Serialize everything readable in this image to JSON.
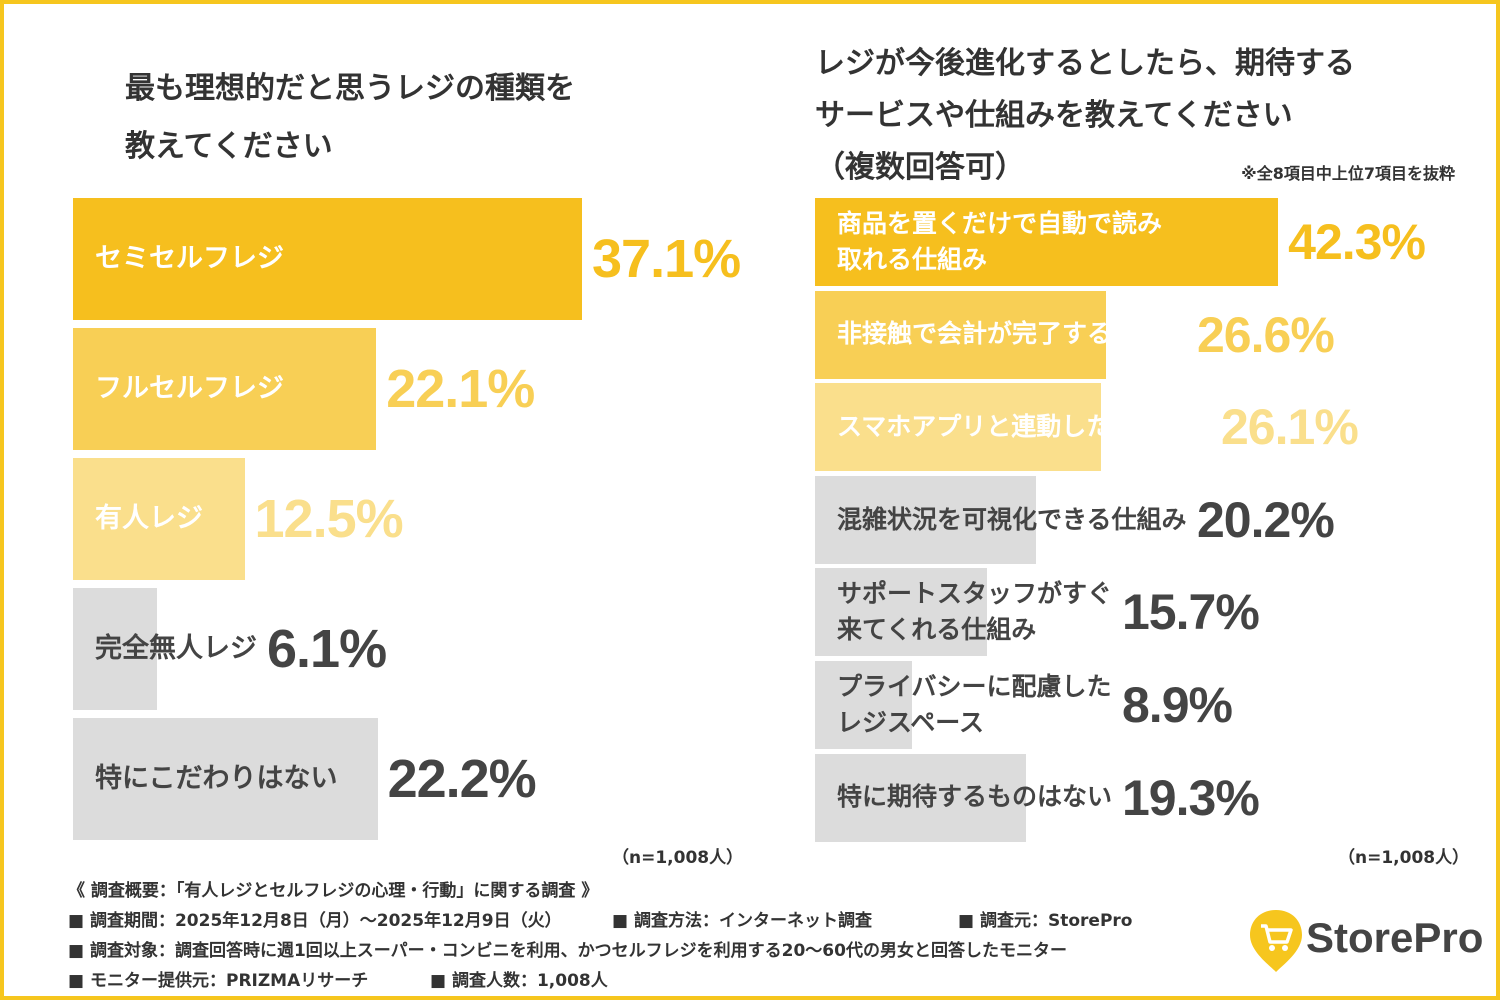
{
  "chart_data": [
    {
      "type": "bar",
      "orientation": "horizontal",
      "title": "最も理想的だと思うレジの種類を\n教えてください",
      "categories": [
        "セミセルフレジ",
        "フルセルフレジ",
        "有人レジ",
        "完全無人レジ",
        "特にこだわりはない"
      ],
      "values": [
        37.1,
        22.1,
        12.5,
        6.1,
        22.2
      ],
      "value_labels": [
        "37.1%",
        "22.1%",
        "12.5%",
        "6.1%",
        "22.2%"
      ],
      "colors": [
        "#f6bf1e",
        "#f8cf55",
        "#fadf8c",
        "#dcdcdc",
        "#dcdcdc"
      ],
      "label_colors": [
        "#ffffff",
        "#ffffff",
        "#ffffff",
        "#444444",
        "#444444"
      ],
      "value_colors": [
        "#f6bf1e",
        "#f8cf55",
        "#fadf8c",
        "#444444",
        "#444444"
      ],
      "note": "（n=1,008人）"
    },
    {
      "type": "bar",
      "orientation": "horizontal",
      "title": "レジが今後進化するとしたら、期待する\nサービスや仕組みを教えてください\n（複数回答可）",
      "annotation": "※全8項目中上位7項目を抜粋",
      "categories": [
        "商品を置くだけで自動で読み\n取れる仕組み",
        "非接触で会計が完了する仕組み",
        "スマホアプリと連動した自動決済",
        "混雑状況を可視化できる仕組み",
        "サポートスタッフがすぐ\n来てくれる仕組み",
        "プライバシーに配慮した\nレジスペース",
        "特に期待するものはない"
      ],
      "values": [
        42.3,
        26.6,
        26.1,
        20.2,
        15.7,
        8.9,
        19.3
      ],
      "value_labels": [
        "42.3%",
        "26.6%",
        "26.1%",
        "20.2%",
        "15.7%",
        "8.9%",
        "19.3%"
      ],
      "colors": [
        "#f6bf1e",
        "#f8cf55",
        "#fadf8c",
        "#dcdcdc",
        "#dcdcdc",
        "#dcdcdc",
        "#dcdcdc"
      ],
      "label_colors": [
        "#ffffff",
        "#ffffff",
        "#ffffff",
        "#444444",
        "#444444",
        "#444444",
        "#444444"
      ],
      "value_colors": [
        "#f6bf1e",
        "#f8cf55",
        "#fadf8c",
        "#444444",
        "#444444",
        "#444444",
        "#444444"
      ],
      "note": "（n=1,008人）"
    }
  ],
  "footer": {
    "heading": "《 調査概要：「有人レジとセルフレジの心理・行動」に関する調査 》",
    "items": [
      [
        "■ 調査期間：2025年12月8日（月）～2025年12月9日（火）",
        "■ 調査方法：インターネット調査",
        "■ 調査元：StorePro"
      ],
      [
        "■ 調査対象：調査回答時に週1回以上スーパー・コンビニを利用、かつセルフレジを利用する20～60代の男女と回答したモニター"
      ],
      [
        "■ モニター提供元：PRIZMAリサーチ",
        "■ 調査人数：1,008人"
      ]
    ]
  },
  "logo": {
    "text": "StorePro"
  }
}
